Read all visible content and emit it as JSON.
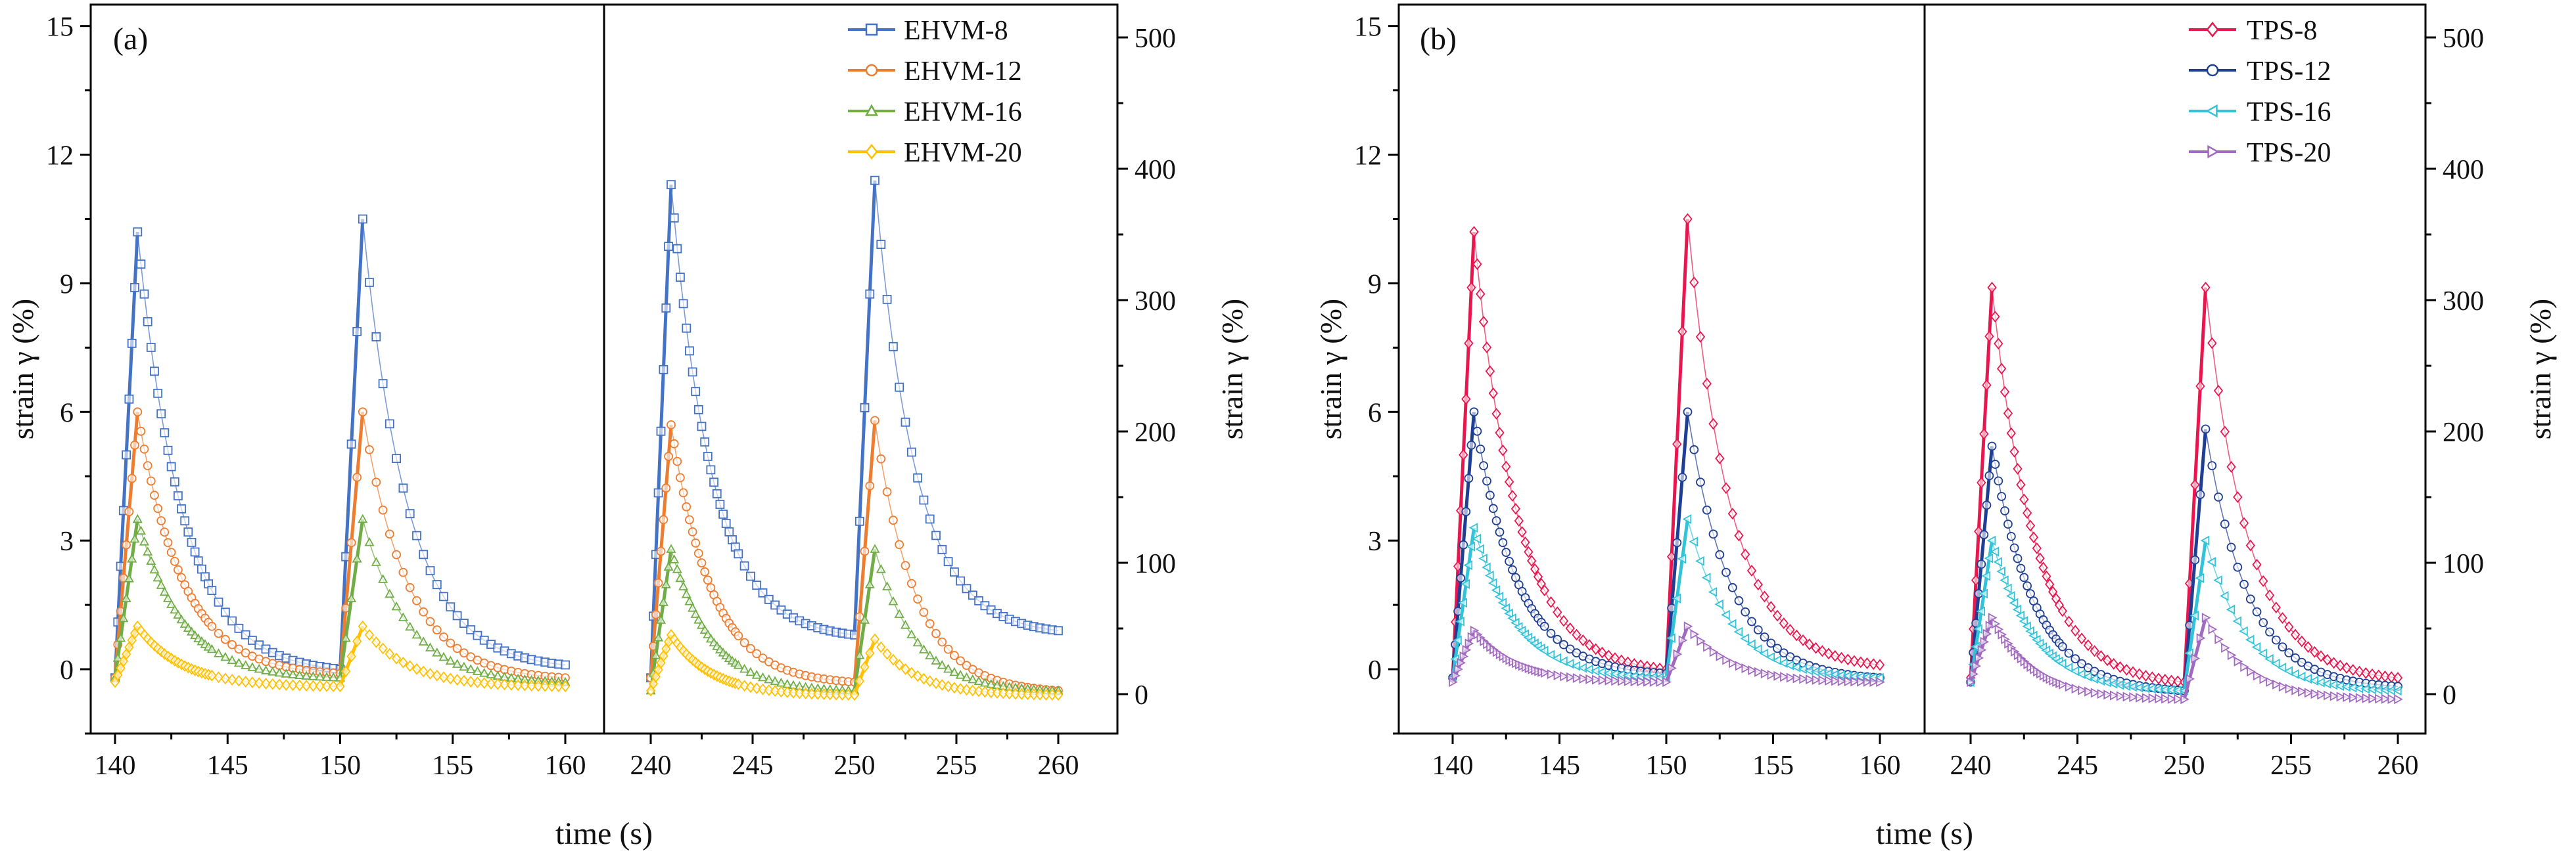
{
  "chart_data": [
    {
      "type": "line",
      "panel_label": "(a)",
      "xlabel": "time (s)",
      "ylabel_left": "strain γ (%)",
      "ylabel_right": "strain γ (%)",
      "x_ranges": [
        [
          140,
          160
        ],
        [
          240,
          260
        ]
      ],
      "x_ticks": [
        [
          "140",
          "145",
          "150",
          "155",
          "160"
        ],
        [
          "240",
          "245",
          "250",
          "255",
          "260"
        ]
      ],
      "ylim_left": [
        -1.5,
        15.5
      ],
      "y_ticks_left": [
        "0",
        "3",
        "6",
        "9",
        "12",
        "15"
      ],
      "ylim_right": [
        -30,
        525
      ],
      "y_ticks_right": [
        "0",
        "100",
        "200",
        "300",
        "400",
        "500"
      ],
      "legend_position": "top-right",
      "series": [
        {
          "name": "EHVM-8",
          "color": "#4472C4",
          "marker": "square",
          "segments": [
            {
              "x": [
                140,
                141,
                150,
                151,
                160
              ],
              "y": [
                -0.2,
                10.2,
                0.0,
                10.5,
                0.1
              ]
            },
            {
              "x": [
                240,
                241,
                250,
                251,
                260
              ],
              "y": [
                -0.2,
                11.3,
                0.8,
                11.4,
                0.9
              ]
            }
          ]
        },
        {
          "name": "EHVM-12",
          "color": "#ED7D31",
          "marker": "circle",
          "segments": [
            {
              "x": [
                140,
                141,
                150,
                151,
                160
              ],
              "y": [
                -0.2,
                6.0,
                -0.1,
                6.0,
                -0.2
              ]
            },
            {
              "x": [
                240,
                241,
                250,
                251,
                260
              ],
              "y": [
                -0.2,
                5.7,
                -0.3,
                5.8,
                -0.5
              ]
            }
          ]
        },
        {
          "name": "EHVM-16",
          "color": "#70AD47",
          "marker": "triangle",
          "segments": [
            {
              "x": [
                140,
                141,
                150,
                151,
                160
              ],
              "y": [
                -0.2,
                3.5,
                -0.2,
                3.5,
                -0.3
              ]
            },
            {
              "x": [
                240,
                241,
                250,
                251,
                260
              ],
              "y": [
                -0.5,
                2.8,
                -0.5,
                2.8,
                -0.5
              ]
            }
          ]
        },
        {
          "name": "EHVM-20",
          "color": "#FFC000",
          "marker": "diamond",
          "segments": [
            {
              "x": [
                140,
                141,
                150,
                151,
                160
              ],
              "y": [
                -0.3,
                1.0,
                -0.4,
                1.0,
                -0.4
              ]
            },
            {
              "x": [
                240,
                241,
                250,
                251,
                260
              ],
              "y": [
                -0.5,
                0.8,
                -0.6,
                0.7,
                -0.6
              ]
            }
          ]
        }
      ]
    },
    {
      "type": "line",
      "panel_label": "(b)",
      "xlabel": "time (s)",
      "ylabel_left": "strain γ (%)",
      "ylabel_right": "strain γ (%)",
      "x_ranges": [
        [
          140,
          160
        ],
        [
          240,
          260
        ]
      ],
      "x_ticks": [
        [
          "140",
          "145",
          "150",
          "155",
          "160"
        ],
        [
          "240",
          "245",
          "250",
          "255",
          "260"
        ]
      ],
      "ylim_left": [
        -1.5,
        15.5
      ],
      "y_ticks_left": [
        "0",
        "3",
        "6",
        "9",
        "12",
        "15"
      ],
      "ylim_right": [
        -30,
        525
      ],
      "y_ticks_right": [
        "0",
        "100",
        "200",
        "300",
        "400",
        "500"
      ],
      "legend_position": "top-right",
      "series": [
        {
          "name": "TPS-8",
          "color": "#E8174F",
          "marker": "diamond",
          "segments": [
            {
              "x": [
                140,
                141,
                150,
                151,
                160
              ],
              "y": [
                -0.2,
                10.2,
                0.0,
                10.5,
                0.1
              ]
            },
            {
              "x": [
                240,
                241,
                250,
                251,
                260
              ],
              "y": [
                -0.2,
                8.9,
                -0.3,
                8.9,
                -0.2
              ]
            }
          ]
        },
        {
          "name": "TPS-12",
          "color": "#1F3F94",
          "marker": "circle",
          "segments": [
            {
              "x": [
                140,
                141,
                150,
                151,
                160
              ],
              "y": [
                -0.2,
                6.0,
                -0.1,
                6.0,
                -0.2
              ]
            },
            {
              "x": [
                240,
                241,
                250,
                251,
                260
              ],
              "y": [
                -0.3,
                5.2,
                -0.5,
                5.6,
                -0.4
              ]
            }
          ]
        },
        {
          "name": "TPS-16",
          "color": "#33C3D8",
          "marker": "triangle-left",
          "segments": [
            {
              "x": [
                140,
                141,
                150,
                151,
                160
              ],
              "y": [
                -0.2,
                3.3,
                -0.2,
                3.5,
                -0.2
              ]
            },
            {
              "x": [
                240,
                241,
                250,
                251,
                260
              ],
              "y": [
                -0.3,
                3.0,
                -0.5,
                3.0,
                -0.5
              ]
            }
          ]
        },
        {
          "name": "TPS-20",
          "color": "#A16ABF",
          "marker": "triangle-right",
          "segments": [
            {
              "x": [
                140,
                141,
                150,
                151,
                160
              ],
              "y": [
                -0.3,
                0.9,
                -0.3,
                1.0,
                -0.3
              ]
            },
            {
              "x": [
                240,
                241,
                250,
                251,
                260
              ],
              "y": [
                -0.3,
                1.2,
                -0.7,
                1.2,
                -0.7
              ]
            }
          ]
        }
      ]
    }
  ]
}
